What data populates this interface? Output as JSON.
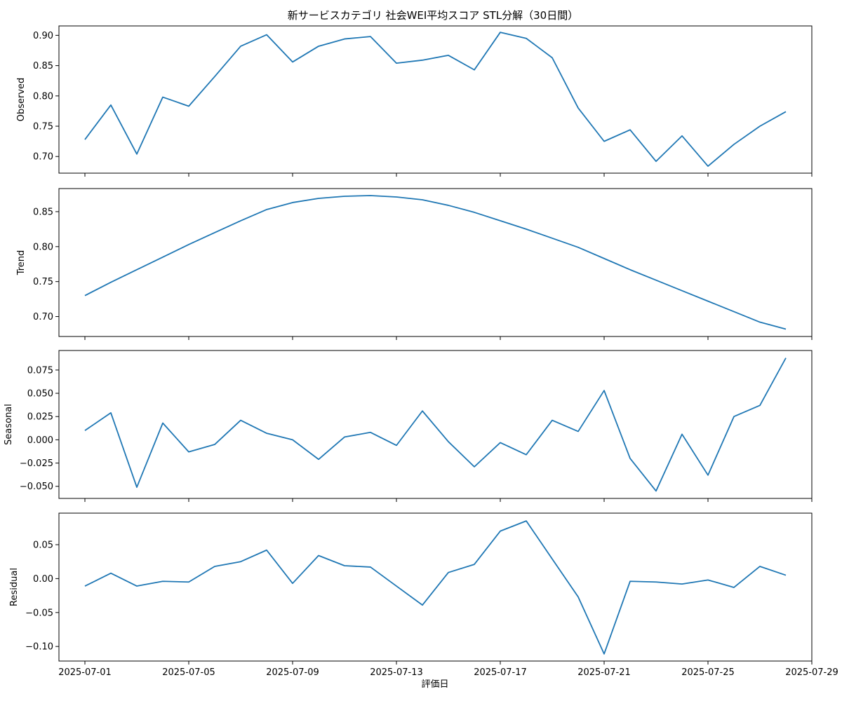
{
  "chart_data": {
    "type": "line",
    "title": "新サービスカテゴリ 社会WEI平均スコア STL分解（30日間）",
    "xlabel": "評価日",
    "line_color": "#1f77b4",
    "x": [
      "2025-07-01",
      "2025-07-02",
      "2025-07-03",
      "2025-07-04",
      "2025-07-05",
      "2025-07-06",
      "2025-07-07",
      "2025-07-08",
      "2025-07-09",
      "2025-07-10",
      "2025-07-11",
      "2025-07-12",
      "2025-07-13",
      "2025-07-14",
      "2025-07-15",
      "2025-07-16",
      "2025-07-17",
      "2025-07-18",
      "2025-07-19",
      "2025-07-20",
      "2025-07-21",
      "2025-07-22",
      "2025-07-23",
      "2025-07-24",
      "2025-07-25",
      "2025-07-26",
      "2025-07-27",
      "2025-07-28"
    ],
    "xlim": [
      "2025-06-30",
      "2025-07-29"
    ],
    "x_ticks": [
      "2025-07-01",
      "2025-07-05",
      "2025-07-09",
      "2025-07-13",
      "2025-07-17",
      "2025-07-21",
      "2025-07-25",
      "2025-07-29"
    ],
    "panels": [
      {
        "ylabel": "Observed",
        "ylim": [
          0.6725,
          0.9155
        ],
        "y_ticks": [
          0.7,
          0.75,
          0.8,
          0.85,
          0.9
        ],
        "y_tick_labels": [
          "0.70",
          "0.75",
          "0.80",
          "0.85",
          "0.90"
        ],
        "values": [
          0.728,
          0.785,
          0.704,
          0.798,
          0.783,
          0.832,
          0.882,
          0.901,
          0.856,
          0.882,
          0.894,
          0.898,
          0.854,
          0.859,
          0.867,
          0.843,
          0.905,
          0.895,
          0.863,
          0.78,
          0.725,
          0.744,
          0.692,
          0.734,
          0.684,
          0.72,
          0.75,
          0.774
        ]
      },
      {
        "ylabel": "Trend",
        "ylim": [
          0.6715,
          0.883
        ],
        "y_ticks": [
          0.7,
          0.75,
          0.8,
          0.85
        ],
        "y_tick_labels": [
          "0.70",
          "0.75",
          "0.80",
          "0.85"
        ],
        "values": [
          0.73,
          0.749,
          0.767,
          0.785,
          0.803,
          0.82,
          0.837,
          0.853,
          0.863,
          0.869,
          0.872,
          0.873,
          0.871,
          0.867,
          0.859,
          0.849,
          0.837,
          0.825,
          0.812,
          0.799,
          0.783,
          0.767,
          0.752,
          0.737,
          0.722,
          0.707,
          0.692,
          0.682
        ]
      },
      {
        "ylabel": "Seasonal",
        "ylim": [
          -0.063,
          0.096
        ],
        "y_ticks": [
          -0.05,
          -0.025,
          0.0,
          0.025,
          0.05,
          0.075
        ],
        "y_tick_labels": [
          "−0.050",
          "−0.025",
          "0.000",
          "0.025",
          "0.050",
          "0.075"
        ],
        "values": [
          0.01,
          0.029,
          -0.051,
          0.018,
          -0.013,
          -0.005,
          0.021,
          0.007,
          0.0,
          -0.021,
          0.003,
          0.008,
          -0.006,
          0.031,
          -0.002,
          -0.029,
          -0.003,
          -0.016,
          0.021,
          0.009,
          0.053,
          -0.02,
          -0.055,
          0.006,
          -0.038,
          0.025,
          0.037,
          0.088
        ]
      },
      {
        "ylabel": "Residual",
        "ylim": [
          -0.1215,
          0.0965
        ],
        "y_ticks": [
          -0.1,
          -0.05,
          0.0,
          0.05
        ],
        "y_tick_labels": [
          "−0.10",
          "−0.05",
          "0.00",
          "0.05"
        ],
        "values": [
          -0.011,
          0.008,
          -0.011,
          -0.004,
          -0.005,
          0.018,
          0.025,
          0.042,
          -0.007,
          0.034,
          0.019,
          0.017,
          -0.011,
          -0.039,
          0.009,
          0.021,
          0.07,
          0.085,
          0.029,
          -0.027,
          -0.111,
          -0.004,
          -0.005,
          -0.008,
          -0.002,
          -0.013,
          0.018,
          0.005
        ]
      }
    ]
  }
}
